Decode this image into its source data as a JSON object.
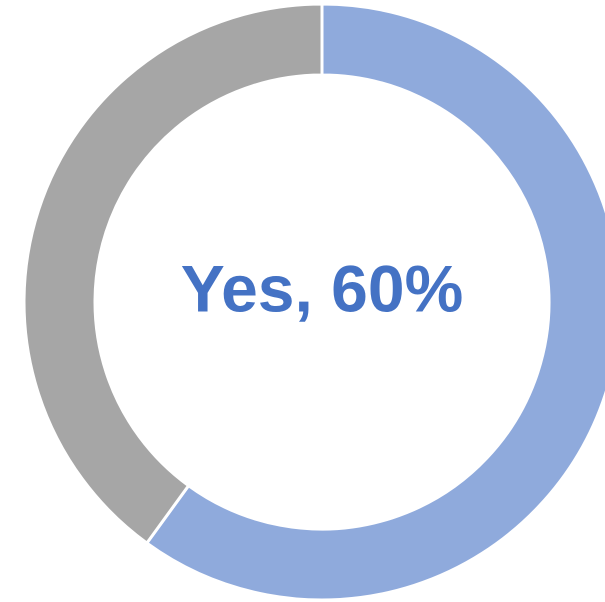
{
  "chart_data": {
    "type": "pie",
    "values": [
      60,
      40
    ],
    "colors": [
      "#8faadc",
      "#a6a6a6"
    ],
    "center_label": "Yes, 60%",
    "center_label_color": "#4472c4",
    "donut": true
  }
}
